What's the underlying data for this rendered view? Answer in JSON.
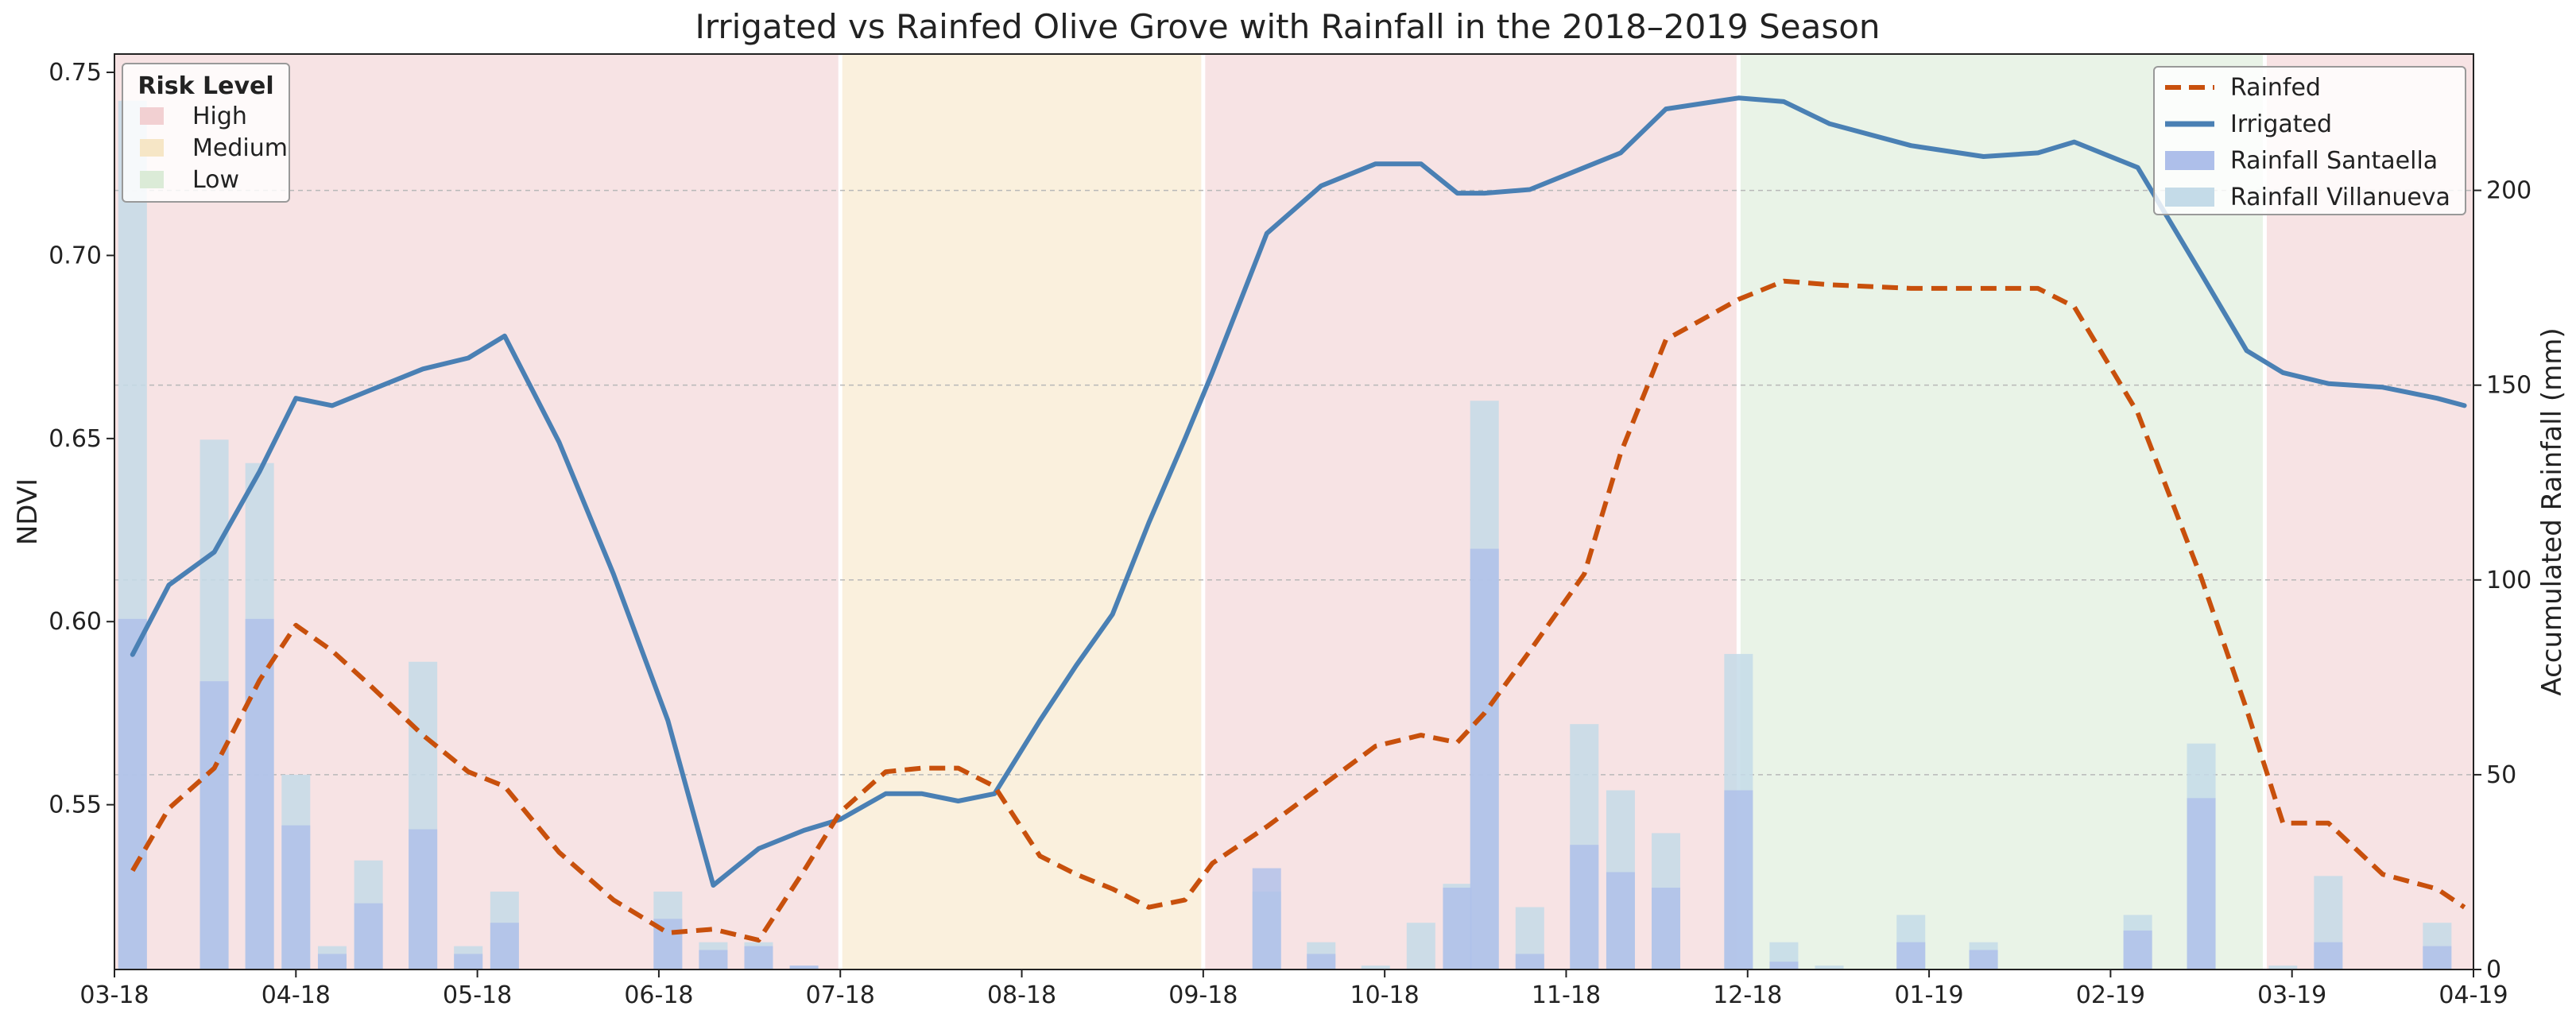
{
  "chart_data": {
    "type": "line",
    "title": "Irrigated vs Rainfed Olive Grove with Rainfall in the 2018–2019 Season",
    "xlabel": "",
    "ylabel": "NDVI",
    "y2label": "Accumulated Rainfall (mm)",
    "ylim": [
      0.505,
      0.755
    ],
    "y2lim": [
      0,
      235
    ],
    "yticks": [
      "0.55",
      "0.60",
      "0.65",
      "0.70",
      "0.75"
    ],
    "ytick_values": [
      0.55,
      0.6,
      0.65,
      0.7,
      0.75
    ],
    "y2ticks": [
      "0",
      "50",
      "100",
      "150",
      "200"
    ],
    "y2tick_values": [
      0,
      50,
      100,
      150,
      200
    ],
    "xlim_months": [
      0,
      13
    ],
    "xticks": [
      "03-18",
      "04-18",
      "05-18",
      "06-18",
      "07-18",
      "08-18",
      "09-18",
      "10-18",
      "11-18",
      "12-18",
      "01-19",
      "02-19",
      "03-19",
      "04-19"
    ],
    "risk_bands": [
      {
        "level": "High",
        "start": 0,
        "end": 4.0
      },
      {
        "level": "Medium",
        "start": 4.0,
        "end": 6.0
      },
      {
        "level": "High",
        "start": 6.0,
        "end": 8.95
      },
      {
        "level": "Low",
        "start": 8.95,
        "end": 11.85
      },
      {
        "level": "High",
        "start": 11.85,
        "end": 13
      }
    ],
    "series": [
      {
        "name": "Rainfed",
        "style": "dashed",
        "x": [
          0.1,
          0.3,
          0.55,
          0.8,
          1.0,
          1.2,
          1.4,
          1.7,
          1.95,
          2.15,
          2.45,
          2.75,
          3.05,
          3.3,
          3.55,
          3.8,
          4.0,
          4.25,
          4.45,
          4.65,
          4.85,
          5.1,
          5.3,
          5.5,
          5.7,
          5.9,
          6.05,
          6.35,
          6.65,
          6.95,
          7.2,
          7.4,
          7.55,
          7.8,
          8.1,
          8.3,
          8.55,
          8.95,
          9.2,
          9.45,
          9.9,
          10.3,
          10.6,
          10.8,
          11.15,
          11.5,
          11.75,
          11.95,
          12.2,
          12.5,
          12.8,
          12.95
        ],
        "values": [
          0.532,
          0.549,
          0.56,
          0.584,
          0.599,
          0.592,
          0.583,
          0.569,
          0.559,
          0.555,
          0.537,
          0.524,
          0.515,
          0.516,
          0.513,
          0.532,
          0.548,
          0.559,
          0.56,
          0.56,
          0.555,
          0.536,
          0.531,
          0.527,
          0.522,
          0.524,
          0.534,
          0.544,
          0.555,
          0.566,
          0.569,
          0.567,
          0.575,
          0.592,
          0.613,
          0.646,
          0.677,
          0.688,
          0.693,
          0.692,
          0.691,
          0.691,
          0.691,
          0.686,
          0.657,
          0.612,
          0.576,
          0.545,
          0.545,
          0.531,
          0.527,
          0.522
        ]
      },
      {
        "name": "Irrigated",
        "style": "solid",
        "x": [
          0.1,
          0.3,
          0.55,
          0.8,
          1.0,
          1.2,
          1.4,
          1.7,
          1.95,
          2.15,
          2.45,
          2.75,
          3.05,
          3.3,
          3.55,
          3.8,
          4.0,
          4.25,
          4.45,
          4.65,
          4.85,
          5.1,
          5.3,
          5.5,
          5.7,
          5.9,
          6.05,
          6.35,
          6.65,
          6.95,
          7.2,
          7.4,
          7.55,
          7.8,
          8.1,
          8.3,
          8.55,
          8.95,
          9.2,
          9.45,
          9.9,
          10.3,
          10.6,
          10.8,
          11.15,
          11.5,
          11.75,
          11.95,
          12.2,
          12.5,
          12.8,
          12.95
        ],
        "values": [
          0.591,
          0.61,
          0.619,
          0.641,
          0.661,
          0.659,
          0.663,
          0.669,
          0.672,
          0.678,
          0.649,
          0.613,
          0.573,
          0.528,
          0.538,
          0.543,
          0.546,
          0.553,
          0.553,
          0.551,
          0.553,
          0.573,
          0.588,
          0.602,
          0.627,
          0.65,
          0.668,
          0.706,
          0.719,
          0.725,
          0.725,
          0.717,
          0.717,
          0.718,
          0.724,
          0.728,
          0.74,
          0.743,
          0.742,
          0.736,
          0.73,
          0.727,
          0.728,
          0.731,
          0.724,
          0.695,
          0.674,
          0.668,
          0.665,
          0.664,
          0.661,
          0.659
        ]
      },
      {
        "name": "Rainfall Santaella",
        "type": "bar",
        "x": [
          0.1,
          0.3,
          0.55,
          0.8,
          1.0,
          1.2,
          1.4,
          1.7,
          1.95,
          2.15,
          2.45,
          2.75,
          3.05,
          3.3,
          3.55,
          3.8,
          4.0,
          4.25,
          4.45,
          4.65,
          4.85,
          5.1,
          5.3,
          5.5,
          5.7,
          5.9,
          6.05,
          6.35,
          6.65,
          6.95,
          7.2,
          7.4,
          7.55,
          7.8,
          8.1,
          8.3,
          8.55,
          8.95,
          9.2,
          9.45,
          9.9,
          10.3,
          10.6,
          10.8,
          11.15,
          11.5,
          11.75,
          11.95,
          12.2,
          12.5,
          12.8,
          12.95
        ],
        "values": [
          90,
          0,
          74,
          90,
          37,
          4,
          17,
          36,
          4,
          12,
          0,
          0,
          13,
          5,
          6,
          1,
          0,
          0,
          0,
          0,
          0,
          0,
          0,
          0,
          0,
          0,
          0,
          26,
          4,
          0,
          0,
          21,
          108,
          4,
          32,
          25,
          21,
          46,
          2,
          0,
          7,
          5,
          0,
          0,
          10,
          44,
          0,
          0,
          7,
          0,
          6,
          0
        ]
      },
      {
        "name": "Rainfall Villanueva",
        "type": "bar",
        "x": [
          0.1,
          0.3,
          0.55,
          0.8,
          1.0,
          1.2,
          1.4,
          1.7,
          1.95,
          2.15,
          2.45,
          2.75,
          3.05,
          3.3,
          3.55,
          3.8,
          4.0,
          4.25,
          4.45,
          4.65,
          4.85,
          5.1,
          5.3,
          5.5,
          5.7,
          5.9,
          6.05,
          6.35,
          6.65,
          6.95,
          7.2,
          7.4,
          7.55,
          7.8,
          8.1,
          8.3,
          8.55,
          8.95,
          9.2,
          9.45,
          9.9,
          10.3,
          10.6,
          10.8,
          11.15,
          11.5,
          11.75,
          11.95,
          12.2,
          12.5,
          12.8,
          12.95
        ],
        "values": [
          223,
          0,
          136,
          130,
          50,
          6,
          28,
          79,
          6,
          20,
          0,
          0,
          20,
          7,
          7,
          1,
          0,
          0,
          0,
          0,
          0,
          0,
          0,
          0,
          0,
          0,
          0,
          20,
          7,
          1,
          12,
          22,
          146,
          16,
          63,
          46,
          35,
          81,
          7,
          1,
          14,
          7,
          0,
          0,
          14,
          58,
          0,
          1,
          24,
          0,
          12,
          0
        ]
      }
    ],
    "legend": {
      "risk_title": "Risk Level",
      "risk_entries": [
        "High",
        "Medium",
        "Low"
      ],
      "series_entries": [
        "Rainfed",
        "Irrigated",
        "Rainfall Santaella",
        "Rainfall Villanueva"
      ],
      "risk_placement": "top-left",
      "series_placement": "top-right"
    },
    "grid": true
  },
  "colors": {
    "rainfed": "#c8500c",
    "irrigated": "#4a80b4",
    "santaella": "#aebfea",
    "villanueva": "#c4dbe8",
    "risk_high": "#f2d0d2",
    "risk_medium": "#f6e6c6",
    "risk_low": "#dbebd7"
  }
}
